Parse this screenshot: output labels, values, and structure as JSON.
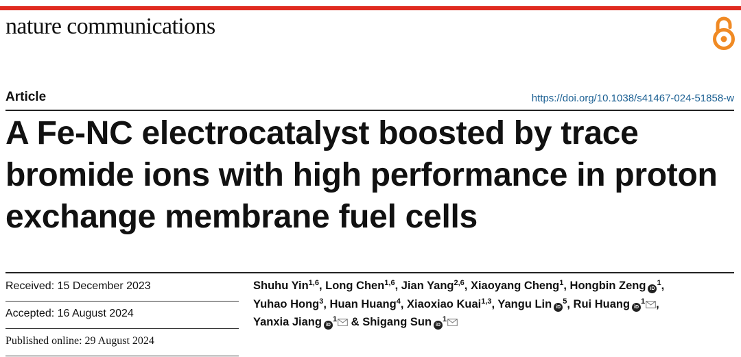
{
  "journal": {
    "name": "nature communications",
    "open_access_icon": "open-access-lock-icon",
    "accent": "#e02b20",
    "oa_color": "#f08a24"
  },
  "article": {
    "type": "Article",
    "doi": "https://doi.org/10.1038/s41467-024-51858-w",
    "title": "A Fe-NC electrocatalyst boosted by trace bromide ions with high performance in proton exchange membrane fuel cells"
  },
  "dates": {
    "received": "Received: 15 December 2023",
    "accepted": "Accepted: 16 August 2024",
    "published": "Published online: 29 August 2024"
  },
  "authors": [
    {
      "name": "Shuhu Yin",
      "sup": "1,6",
      "orcid": false,
      "mail": false,
      "sep": ", "
    },
    {
      "name": "Long Chen",
      "sup": "1,6",
      "orcid": false,
      "mail": false,
      "sep": ", "
    },
    {
      "name": "Jian Yang",
      "sup": "2,6",
      "orcid": false,
      "mail": false,
      "sep": ", "
    },
    {
      "name": "Xiaoyang Cheng",
      "sup": "1",
      "orcid": false,
      "mail": false,
      "sep": ", "
    },
    {
      "name": "Hongbin Zeng",
      "sup": "1",
      "orcid": true,
      "mail": false,
      "sep": ", "
    },
    {
      "name": "Yuhao Hong",
      "sup": "3",
      "orcid": false,
      "mail": false,
      "sep": ", "
    },
    {
      "name": "Huan Huang",
      "sup": "4",
      "orcid": false,
      "mail": false,
      "sep": ", "
    },
    {
      "name": "Xiaoxiao Kuai",
      "sup": "1,3",
      "orcid": false,
      "mail": false,
      "sep": ", "
    },
    {
      "name": "Yangu Lin",
      "sup": "5",
      "orcid": true,
      "mail": false,
      "sep": ", "
    },
    {
      "name": "Rui Huang",
      "sup": "1",
      "orcid": true,
      "mail": true,
      "sep": ", "
    },
    {
      "name": "Yanxia Jiang",
      "sup": "1",
      "orcid": true,
      "mail": true,
      "sep": " & "
    },
    {
      "name": "Shigang Sun",
      "sup": "1",
      "orcid": true,
      "mail": true,
      "sep": ""
    }
  ]
}
